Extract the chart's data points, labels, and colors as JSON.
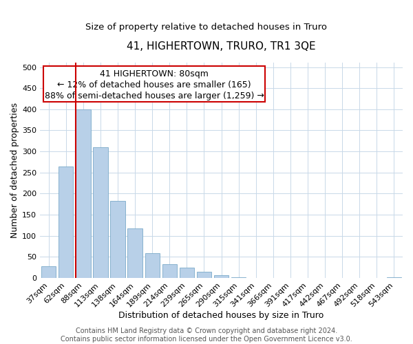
{
  "title": "41, HIGHERTOWN, TRURO, TR1 3QE",
  "subtitle": "Size of property relative to detached houses in Truro",
  "xlabel": "Distribution of detached houses by size in Truro",
  "ylabel": "Number of detached properties",
  "bar_labels": [
    "37sqm",
    "62sqm",
    "88sqm",
    "113sqm",
    "138sqm",
    "164sqm",
    "189sqm",
    "214sqm",
    "239sqm",
    "265sqm",
    "290sqm",
    "315sqm",
    "341sqm",
    "366sqm",
    "391sqm",
    "417sqm",
    "442sqm",
    "467sqm",
    "492sqm",
    "518sqm",
    "543sqm"
  ],
  "bar_values": [
    28,
    265,
    400,
    310,
    182,
    118,
    58,
    32,
    25,
    15,
    7,
    1,
    0,
    0,
    0,
    0,
    0,
    0,
    0,
    0,
    2
  ],
  "bar_color": "#b8d0e8",
  "bar_edge_color": "#7aaac8",
  "vline_color": "#cc0000",
  "vline_xindex": 2,
  "annotation_line1": "41 HIGHERTOWN: 80sqm",
  "annotation_line2": "← 12% of detached houses are smaller (165)",
  "annotation_line3": "88% of semi-detached houses are larger (1,259) →",
  "ylim": [
    0,
    510
  ],
  "yticks": [
    0,
    50,
    100,
    150,
    200,
    250,
    300,
    350,
    400,
    450,
    500
  ],
  "footer_text": "Contains HM Land Registry data © Crown copyright and database right 2024.\nContains public sector information licensed under the Open Government Licence v3.0.",
  "title_fontsize": 11,
  "subtitle_fontsize": 9.5,
  "axis_label_fontsize": 9,
  "tick_fontsize": 8,
  "annotation_fontsize": 9,
  "footer_fontsize": 7,
  "background_color": "#ffffff",
  "grid_color": "#c8d8e8"
}
